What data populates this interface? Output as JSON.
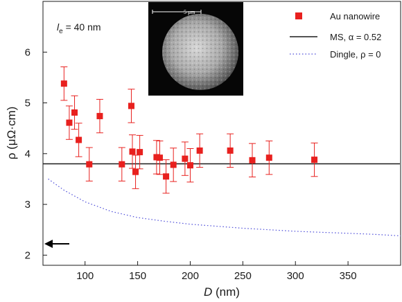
{
  "chart_data": {
    "type": "scatter",
    "xlabel_italic": "D",
    "xlabel_rest": " (nm)",
    "ylabel": "ρ (μΩ·cm)",
    "xlim": [
      60,
      400
    ],
    "ylim": [
      1.8,
      7.0
    ],
    "x_ticks": [
      100,
      150,
      200,
      250,
      300,
      350
    ],
    "y_ticks": [
      2,
      3,
      4,
      5,
      6
    ],
    "annotation": {
      "symbol": "l",
      "subscript": "e",
      "rest": " = 40 nm"
    },
    "inset": {
      "scale_bar_label": "5 μm"
    },
    "colors": {
      "data": "#e8201e",
      "ms_line": "#1a1a1a",
      "dingle": "#4a4ad8"
    },
    "series": [
      {
        "name": "Au nanowire",
        "marker": "square",
        "x": [
          80,
          85,
          90,
          94,
          104,
          114,
          135,
          144,
          145,
          148,
          152,
          168,
          171,
          177,
          184,
          195,
          200,
          209,
          238,
          259,
          275,
          318
        ],
        "y": [
          5.38,
          4.61,
          4.81,
          4.27,
          3.79,
          4.74,
          3.79,
          4.94,
          4.04,
          3.64,
          4.03,
          3.93,
          3.92,
          3.55,
          3.78,
          3.9,
          3.77,
          4.06,
          4.06,
          3.87,
          3.92,
          3.88
        ],
        "err": 0.33
      },
      {
        "name": "MS, α = 0.52",
        "style": "solid",
        "x": [
          60,
          400
        ],
        "y": [
          3.8,
          3.8
        ]
      },
      {
        "name": "Dingle, ρ = 0",
        "style": "dotted",
        "x": [
          65,
          80,
          100,
          125,
          150,
          175,
          200,
          225,
          250,
          275,
          300,
          325,
          350,
          375,
          400
        ],
        "y": [
          3.5,
          3.28,
          3.05,
          2.86,
          2.74,
          2.67,
          2.61,
          2.57,
          2.53,
          2.5,
          2.47,
          2.45,
          2.43,
          2.41,
          2.38
        ]
      }
    ]
  }
}
